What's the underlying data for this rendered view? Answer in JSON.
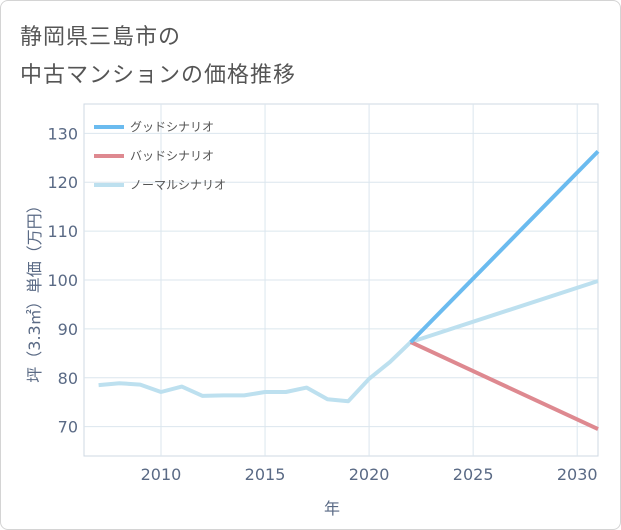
{
  "header": {
    "title_line1": "静岡県三島市の",
    "title_line2": "中古マンションの価格推移"
  },
  "chart_data": {
    "type": "line",
    "title": "静岡県三島市の中古マンションの価格推移",
    "xlabel": "年",
    "ylabel": "坪（3.3㎡）単価（万円）",
    "xlim": [
      2006.3,
      2031
    ],
    "ylim": [
      64,
      136
    ],
    "xticks": [
      2010,
      2015,
      2020,
      2025,
      2030
    ],
    "yticks": [
      70,
      80,
      90,
      100,
      110,
      120,
      130
    ],
    "grid": true,
    "legend_position": "top-left",
    "series": [
      {
        "name": "グッドシナリオ",
        "color": "#6bbbef",
        "x": [
          2022,
          2031
        ],
        "y": [
          87.3,
          126.3
        ]
      },
      {
        "name": "バッドシナリオ",
        "color": "#de8990",
        "x": [
          2022,
          2031
        ],
        "y": [
          87.3,
          69.5
        ]
      },
      {
        "name": "ノーマルシナリオ",
        "color": "#bde0ef",
        "x": [
          2007,
          2008,
          2009,
          2010,
          2011,
          2012,
          2013,
          2014,
          2015,
          2016,
          2017,
          2018,
          2019,
          2020,
          2021,
          2022,
          2031
        ],
        "y": [
          78.5,
          78.9,
          78.6,
          77.1,
          78.2,
          76.3,
          76.4,
          76.4,
          77.1,
          77.1,
          78.0,
          75.6,
          75.2,
          79.8,
          83.2,
          87.3,
          99.8
        ]
      }
    ]
  }
}
